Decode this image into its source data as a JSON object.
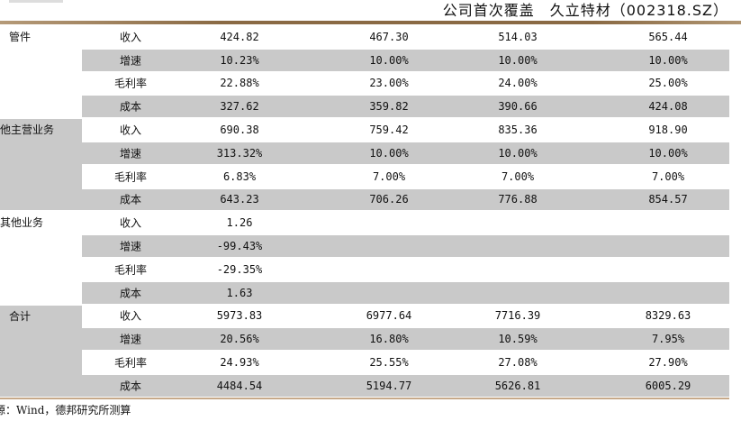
{
  "header": {
    "title": "公司首次覆盖　久立特材（002318.SZ）"
  },
  "groups": [
    {
      "name": "管件",
      "shaded": false,
      "rows": [
        {
          "label": "收入",
          "values": [
            "424.82",
            "467.30",
            "514.03",
            "565.44"
          ]
        },
        {
          "label": "增速",
          "values": [
            "10.23%",
            "10.00%",
            "10.00%",
            "10.00%"
          ]
        },
        {
          "label": "毛利率",
          "values": [
            "22.88%",
            "23.00%",
            "24.00%",
            "25.00%"
          ]
        },
        {
          "label": "成本",
          "values": [
            "327.62",
            "359.82",
            "390.66",
            "424.08"
          ]
        }
      ]
    },
    {
      "name": "他主营业务",
      "shaded": true,
      "rows": [
        {
          "label": "收入",
          "values": [
            "690.38",
            "759.42",
            "835.36",
            "918.90"
          ]
        },
        {
          "label": "增速",
          "values": [
            "313.32%",
            "10.00%",
            "10.00%",
            "10.00%"
          ]
        },
        {
          "label": "毛利率",
          "values": [
            "6.83%",
            "7.00%",
            "7.00%",
            "7.00%"
          ]
        },
        {
          "label": "成本",
          "values": [
            "643.23",
            "706.26",
            "776.88",
            "854.57"
          ]
        }
      ]
    },
    {
      "name": "其他业务",
      "shaded": false,
      "rows": [
        {
          "label": "收入",
          "values": [
            "1.26",
            "",
            "",
            ""
          ]
        },
        {
          "label": "增速",
          "values": [
            "-99.43%",
            "",
            "",
            ""
          ]
        },
        {
          "label": "毛利率",
          "values": [
            "-29.35%",
            "",
            "",
            ""
          ]
        },
        {
          "label": "成本",
          "values": [
            "1.63",
            "",
            "",
            ""
          ]
        }
      ]
    },
    {
      "name": "合计",
      "shaded": true,
      "rows": [
        {
          "label": "收入",
          "values": [
            "5973.83",
            "6977.64",
            "7716.39",
            "8329.63"
          ]
        },
        {
          "label": "增速",
          "values": [
            "20.56%",
            "16.80%",
            "10.59%",
            "7.95%"
          ]
        },
        {
          "label": "毛利率",
          "values": [
            "24.93%",
            "25.55%",
            "27.08%",
            "27.90%"
          ]
        },
        {
          "label": "成本",
          "values": [
            "4484.54",
            "5194.77",
            "5626.81",
            "6005.29"
          ]
        }
      ]
    }
  ],
  "footer": {
    "source": "源：Wind，德邦研究所测算"
  },
  "colors": {
    "row_shade": "#c9c9c9",
    "rule": "#8a6a44"
  }
}
